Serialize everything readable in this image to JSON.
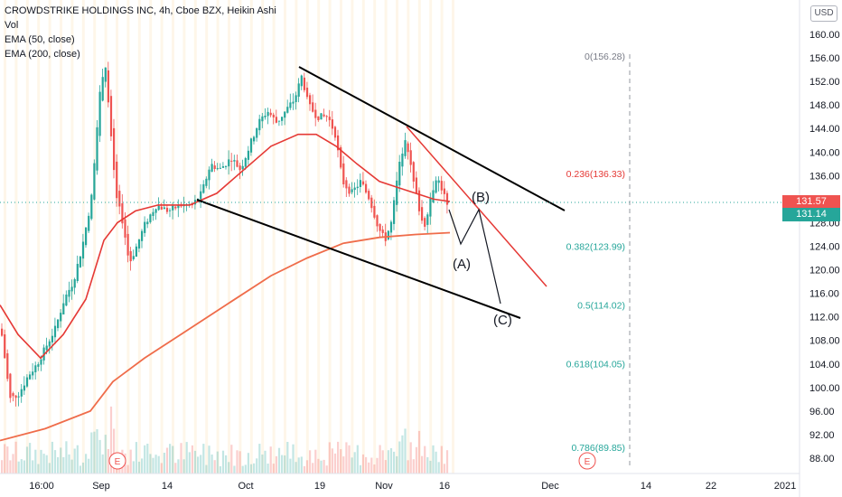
{
  "legend": {
    "title": "CROWDSTRIKE HOLDINGS INC, 4h, Cboe BZX, Heikin Ashi",
    "vol": "Vol",
    "ema50": "EMA (50, close)",
    "ema200": "EMA (200, close)"
  },
  "currency_button": "USD",
  "price_tags": {
    "current_red": "131.57",
    "current_green": "131.14"
  },
  "colors": {
    "up": "#26a69a",
    "down": "#ef5350",
    "ema50": "#e53935",
    "ema200": "#ef6c4a",
    "fib_red": "#e53935",
    "fib_green": "#26a69a",
    "fib_gray": "#787b86"
  },
  "chart_data": {
    "type": "candlestick",
    "title": "CROWDSTRIKE HOLDINGS INC, 4h, Cboe BZX, Heikin Ashi",
    "y_ticks": [
      "160.00",
      "156.00",
      "152.00",
      "148.00",
      "144.00",
      "140.00",
      "136.00",
      "132.00",
      "128.00",
      "124.00",
      "120.00",
      "116.00",
      "112.00",
      "108.00",
      "104.00",
      "100.00",
      "96.00",
      "92.00",
      "88.00"
    ],
    "ylim": [
      86,
      162
    ],
    "x_ticks": [
      {
        "label": "16:00",
        "x": 46
      },
      {
        "label": "Sep",
        "x": 112
      },
      {
        "label": "14",
        "x": 185
      },
      {
        "label": "Oct",
        "x": 272
      },
      {
        "label": "19",
        "x": 354
      },
      {
        "label": "Nov",
        "x": 425
      },
      {
        "label": "16",
        "x": 492
      },
      {
        "label": "Dec",
        "x": 609
      },
      {
        "label": "14",
        "x": 715
      },
      {
        "label": "22",
        "x": 787
      },
      {
        "label": "2021",
        "x": 869
      }
    ],
    "fibonacci": [
      {
        "label": "0(156.28)",
        "value": 156.28,
        "color": "#787b86"
      },
      {
        "label": "0.236(136.33)",
        "value": 136.33,
        "color": "#e53935"
      },
      {
        "label": "0.382(123.99)",
        "value": 123.99,
        "color": "#26a69a"
      },
      {
        "label": "0.5(114.02)",
        "value": 114.02,
        "color": "#26a69a"
      },
      {
        "label": "0.618(104.05)",
        "value": 104.05,
        "color": "#26a69a"
      },
      {
        "label": "0.786(89.85)",
        "value": 89.85,
        "color": "#26a69a"
      }
    ],
    "wave_labels": [
      "(A)",
      "(B)",
      "(C)"
    ],
    "event_markers": [
      "E",
      "E"
    ],
    "price_path": [
      [
        0,
        110
      ],
      [
        10,
        98
      ],
      [
        20,
        99
      ],
      [
        30,
        102
      ],
      [
        40,
        104
      ],
      [
        50,
        107
      ],
      [
        60,
        110
      ],
      [
        70,
        115
      ],
      [
        80,
        118
      ],
      [
        90,
        124
      ],
      [
        100,
        132
      ],
      [
        108,
        148
      ],
      [
        115,
        156
      ],
      [
        122,
        142
      ],
      [
        128,
        132
      ],
      [
        135,
        128
      ],
      [
        142,
        121
      ],
      [
        150,
        124
      ],
      [
        160,
        128
      ],
      [
        172,
        131
      ],
      [
        185,
        130
      ],
      [
        200,
        131
      ],
      [
        212,
        131
      ],
      [
        222,
        133
      ],
      [
        232,
        138
      ],
      [
        242,
        137
      ],
      [
        255,
        139
      ],
      [
        265,
        137
      ],
      [
        275,
        141
      ],
      [
        285,
        145
      ],
      [
        295,
        147
      ],
      [
        305,
        145
      ],
      [
        315,
        147
      ],
      [
        325,
        149
      ],
      [
        333,
        153
      ],
      [
        340,
        148
      ],
      [
        350,
        146
      ],
      [
        362,
        146
      ],
      [
        370,
        143
      ],
      [
        378,
        135
      ],
      [
        388,
        133
      ],
      [
        398,
        135
      ],
      [
        408,
        132
      ],
      [
        418,
        127
      ],
      [
        425,
        125
      ],
      [
        432,
        128
      ],
      [
        440,
        137
      ],
      [
        448,
        143
      ],
      [
        455,
        136
      ],
      [
        462,
        131
      ],
      [
        468,
        127
      ],
      [
        475,
        132
      ],
      [
        482,
        136
      ],
      [
        490,
        133
      ],
      [
        497,
        129
      ]
    ],
    "ema50_path": [
      [
        0,
        114
      ],
      [
        20,
        109
      ],
      [
        45,
        105
      ],
      [
        70,
        109
      ],
      [
        95,
        115
      ],
      [
        115,
        125
      ],
      [
        130,
        128
      ],
      [
        150,
        130
      ],
      [
        175,
        131
      ],
      [
        210,
        131
      ],
      [
        240,
        133
      ],
      [
        270,
        137
      ],
      [
        300,
        141
      ],
      [
        330,
        143
      ],
      [
        350,
        143
      ],
      [
        372,
        141
      ],
      [
        395,
        138
      ],
      [
        420,
        135
      ],
      [
        440,
        134
      ],
      [
        460,
        133
      ],
      [
        480,
        132
      ],
      [
        498,
        131.6
      ]
    ],
    "ema200_path": [
      [
        0,
        91
      ],
      [
        50,
        93
      ],
      [
        100,
        96
      ],
      [
        125,
        101
      ],
      [
        160,
        105
      ],
      [
        200,
        109
      ],
      [
        250,
        114
      ],
      [
        300,
        119
      ],
      [
        340,
        122
      ],
      [
        380,
        124.5
      ],
      [
        420,
        125.5
      ],
      [
        460,
        126
      ],
      [
        498,
        126.3
      ]
    ]
  }
}
